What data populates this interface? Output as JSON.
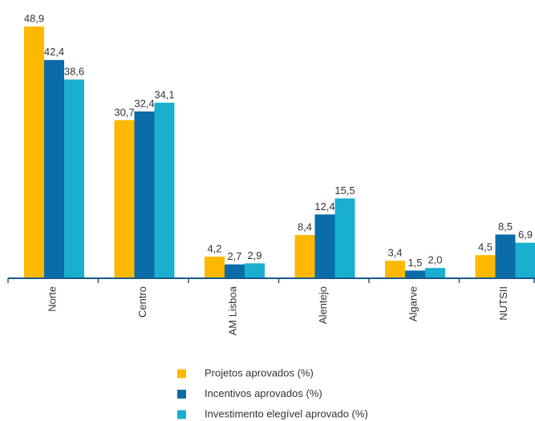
{
  "chart_data": {
    "type": "bar",
    "categories": [
      "Norte",
      "Centro",
      "AM Lisboa",
      "Alentejo",
      "Algarve",
      "NUTSII"
    ],
    "series": [
      {
        "name": "Projetos aprovados (%)",
        "color": "#ffb800",
        "values": [
          48.9,
          30.7,
          4.2,
          8.4,
          3.4,
          4.5
        ],
        "value_labels": [
          "48,9",
          "30,7",
          "4,2",
          "8,4",
          "3,4",
          "4,5"
        ]
      },
      {
        "name": "Incentivos aprovados (%)",
        "color": "#0a6ca8",
        "values": [
          42.4,
          32.4,
          2.7,
          12.4,
          1.5,
          8.5
        ],
        "value_labels": [
          "42,4",
          "32,4",
          "2,7",
          "12,4",
          "1,5",
          "8,5"
        ]
      },
      {
        "name": "Investimento elegível aprovado (%)",
        "color": "#1aafcf",
        "values": [
          38.6,
          34.1,
          2.9,
          15.5,
          2.0,
          6.9
        ],
        "value_labels": [
          "38,6",
          "34,1",
          "2,9",
          "15,5",
          "2,0",
          "6,9"
        ]
      }
    ],
    "legend": "bottom"
  }
}
